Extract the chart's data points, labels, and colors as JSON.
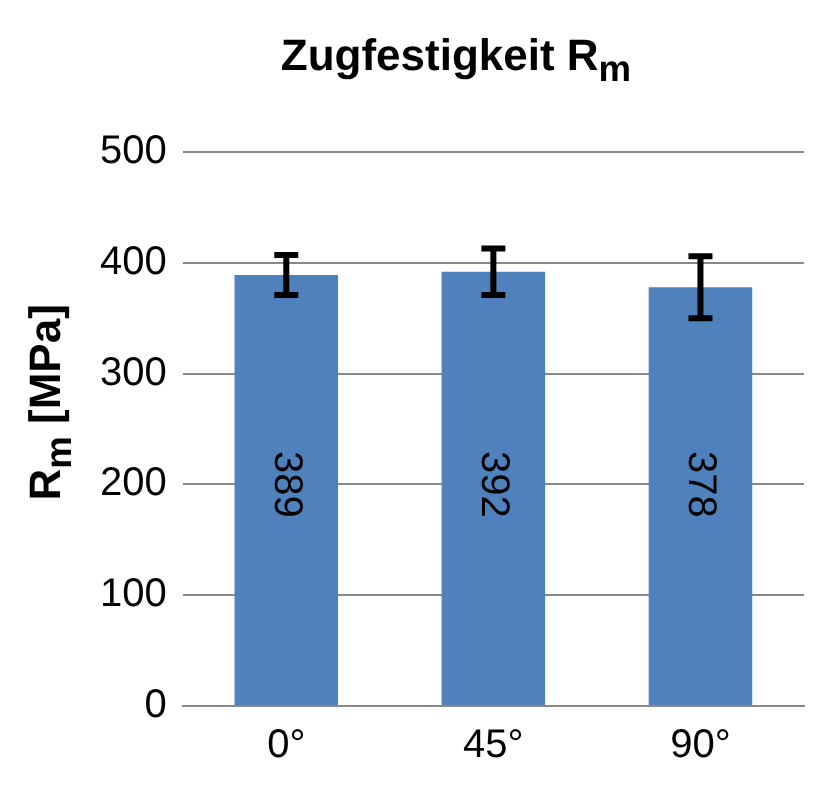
{
  "chart_data": {
    "type": "bar",
    "title": "Zugfestigkeit R$_{m}$",
    "ylabel": "R$_{m}$ [MPa]",
    "categories": [
      "0°",
      "45°",
      "90°"
    ],
    "values": [
      389,
      392,
      378
    ],
    "errors": [
      18,
      21,
      28
    ],
    "color": "#4f81bd",
    "ylim": [
      0,
      500
    ],
    "yticks": [
      0,
      100,
      200,
      300,
      400,
      500
    ],
    "grid": "y",
    "data_labels": true,
    "legend": false
  }
}
